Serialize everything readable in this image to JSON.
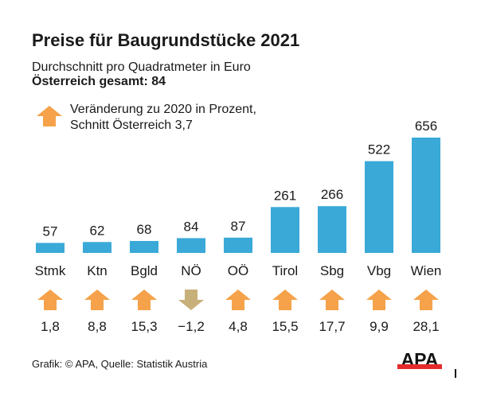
{
  "chart_data": {
    "type": "bar",
    "title": "Preise für Baugrundstücke 2021",
    "subtitle": "Durchschnitt pro Quadratmeter in Euro",
    "total": "Österreich gesamt: 84",
    "legend": [
      "Veränderung zu 2020 in Prozent,",
      "Schnitt Österreich 3,7"
    ],
    "categories": [
      "Stmk",
      "Ktn",
      "Bgld",
      "NÖ",
      "OÖ",
      "Tirol",
      "Sbg",
      "Vbg",
      "Wien"
    ],
    "values": [
      57,
      62,
      68,
      84,
      87,
      261,
      266,
      522,
      656
    ],
    "value_labels": [
      "57",
      "62",
      "68",
      "84",
      "87",
      "261",
      "266",
      "522",
      "656"
    ],
    "change_pct": [
      1.8,
      8.8,
      15.3,
      -1.2,
      4.8,
      15.5,
      17.7,
      9.9,
      28.1
    ],
    "change_labels": [
      "1,8",
      "8,8",
      "15,3",
      "−1,2",
      "4,8",
      "15,5",
      "17,7",
      "9,9",
      "28,1"
    ],
    "ylim": [
      0,
      656
    ],
    "grid": false,
    "colors": {
      "bar": "#3aa9d8",
      "up": "#f5a24a",
      "down": "#c8b07a",
      "logo_red": "#e32b2b"
    }
  },
  "source": "Grafik: © APA, Quelle: Statistik Austria",
  "logo": "APA"
}
